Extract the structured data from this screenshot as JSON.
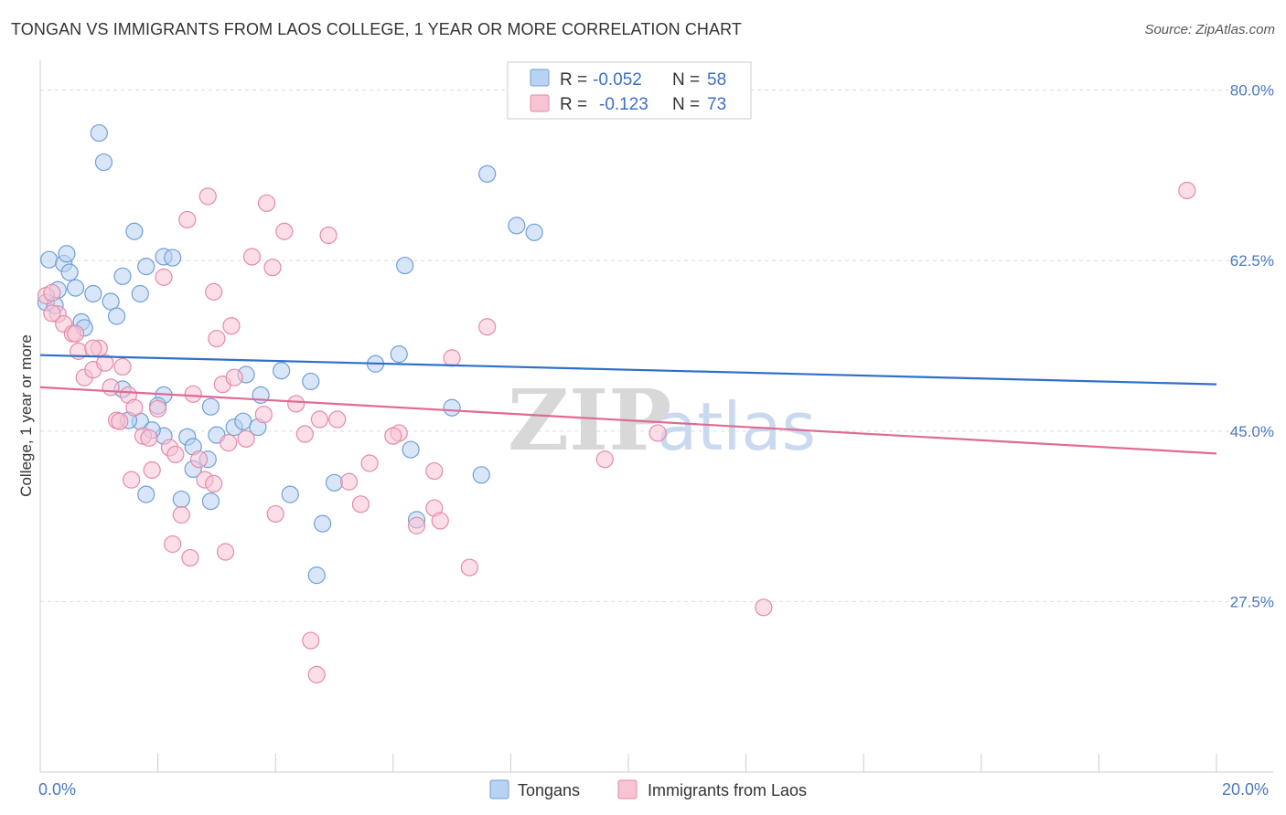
{
  "title": "TONGAN VS IMMIGRANTS FROM LAOS COLLEGE, 1 YEAR OR MORE CORRELATION CHART",
  "source": "Source: ZipAtlas.com",
  "watermark": {
    "zip": "ZIP",
    "atlas": "atlas"
  },
  "legend": {
    "r_label": "R =",
    "n_label": "N =",
    "rows": [
      {
        "r": "-0.052",
        "n": "58",
        "fill": "#b9d2f2",
        "stroke": "#6f9fd8"
      },
      {
        "r": "-0.123",
        "n": "73",
        "fill": "#f8c3d3",
        "stroke": "#e58aa8"
      }
    ]
  },
  "bottom_legend": [
    {
      "label": "Tongans",
      "fill": "#b9d2f2",
      "stroke": "#6f9fd8"
    },
    {
      "label": "Immigrants from Laos",
      "fill": "#f8c3d3",
      "stroke": "#e58aa8"
    }
  ],
  "chart_data": {
    "type": "scatter",
    "title": "TONGAN VS IMMIGRANTS FROM LAOS COLLEGE, 1 YEAR OR MORE CORRELATION CHART",
    "xlabel": "",
    "ylabel": "College, 1 year or more",
    "xlim": [
      0,
      20
    ],
    "ylim": [
      10,
      82.5
    ],
    "x_tick_labels": [
      "0.0%",
      "20.0%"
    ],
    "y_ticks": [
      27.5,
      45.0,
      62.5,
      80.0
    ],
    "y_tick_labels": [
      "27.5%",
      "45.0%",
      "62.5%",
      "80.0%"
    ],
    "grid": true,
    "legend_position": "top-center",
    "series": [
      {
        "name": "Tongans",
        "color": "#6f9fd8",
        "line_color": "#2f6fc9",
        "trend": [
          [
            0,
            52.8
          ],
          [
            20,
            49.8
          ]
        ],
        "points": [
          [
            0.1,
            58.2
          ],
          [
            0.15,
            62.6
          ],
          [
            0.25,
            57.9
          ],
          [
            0.3,
            59.5
          ],
          [
            0.4,
            62.2
          ],
          [
            0.5,
            61.3
          ],
          [
            0.45,
            63.2
          ],
          [
            0.6,
            59.7
          ],
          [
            0.7,
            56.2
          ],
          [
            0.75,
            55.6
          ],
          [
            0.9,
            59.1
          ],
          [
            1.0,
            75.6
          ],
          [
            1.08,
            72.6
          ],
          [
            1.2,
            58.3
          ],
          [
            1.3,
            56.8
          ],
          [
            1.4,
            60.9
          ],
          [
            1.6,
            65.5
          ],
          [
            1.7,
            59.1
          ],
          [
            1.8,
            61.9
          ],
          [
            2.1,
            62.9
          ],
          [
            2.25,
            62.8
          ],
          [
            1.4,
            49.3
          ],
          [
            1.7,
            46.0
          ],
          [
            1.5,
            46.1
          ],
          [
            2.1,
            48.7
          ],
          [
            2.0,
            47.6
          ],
          [
            2.1,
            44.5
          ],
          [
            1.9,
            45.1
          ],
          [
            2.5,
            44.4
          ],
          [
            2.6,
            43.4
          ],
          [
            2.6,
            41.1
          ],
          [
            2.85,
            42.1
          ],
          [
            2.9,
            47.5
          ],
          [
            3.0,
            44.6
          ],
          [
            3.3,
            45.4
          ],
          [
            3.45,
            46.0
          ],
          [
            3.5,
            50.8
          ],
          [
            3.7,
            45.4
          ],
          [
            3.75,
            48.7
          ],
          [
            4.1,
            51.2
          ],
          [
            4.25,
            38.5
          ],
          [
            4.6,
            50.1
          ],
          [
            4.8,
            35.5
          ],
          [
            5.0,
            39.7
          ],
          [
            5.7,
            51.9
          ],
          [
            6.1,
            52.9
          ],
          [
            6.3,
            43.1
          ],
          [
            6.4,
            35.9
          ],
          [
            7.0,
            47.4
          ],
          [
            7.6,
            71.4
          ],
          [
            6.2,
            62.0
          ],
          [
            7.5,
            40.5
          ],
          [
            8.1,
            66.1
          ],
          [
            8.4,
            65.4
          ],
          [
            1.8,
            38.5
          ],
          [
            2.4,
            38.0
          ],
          [
            2.9,
            37.8
          ],
          [
            4.7,
            30.2
          ]
        ]
      },
      {
        "name": "Immigrants from Laos",
        "color": "#e58aa8",
        "line_color": "#e06a94",
        "trend": [
          [
            0,
            49.5
          ],
          [
            20,
            42.7
          ]
        ],
        "points": [
          [
            0.1,
            58.9
          ],
          [
            0.2,
            59.2
          ],
          [
            0.3,
            57.0
          ],
          [
            0.4,
            56.0
          ],
          [
            0.55,
            55.0
          ],
          [
            0.65,
            53.2
          ],
          [
            0.75,
            50.5
          ],
          [
            0.9,
            51.3
          ],
          [
            1.0,
            53.5
          ],
          [
            1.1,
            52.0
          ],
          [
            1.2,
            49.5
          ],
          [
            1.3,
            46.1
          ],
          [
            1.4,
            51.6
          ],
          [
            1.5,
            48.7
          ],
          [
            1.6,
            47.4
          ],
          [
            1.75,
            44.5
          ],
          [
            1.85,
            44.3
          ],
          [
            1.9,
            41.0
          ],
          [
            2.0,
            47.3
          ],
          [
            2.1,
            60.8
          ],
          [
            2.2,
            43.3
          ],
          [
            2.3,
            42.6
          ],
          [
            2.4,
            36.4
          ],
          [
            2.5,
            66.7
          ],
          [
            2.6,
            48.8
          ],
          [
            2.7,
            42.1
          ],
          [
            2.8,
            40.0
          ],
          [
            2.85,
            69.1
          ],
          [
            2.95,
            59.3
          ],
          [
            3.0,
            54.5
          ],
          [
            3.1,
            49.8
          ],
          [
            3.25,
            55.8
          ],
          [
            3.3,
            50.5
          ],
          [
            3.5,
            44.2
          ],
          [
            3.6,
            62.9
          ],
          [
            3.8,
            46.7
          ],
          [
            3.85,
            68.4
          ],
          [
            3.95,
            61.8
          ],
          [
            4.15,
            65.5
          ],
          [
            4.35,
            47.8
          ],
          [
            4.5,
            44.7
          ],
          [
            4.75,
            46.2
          ],
          [
            4.9,
            65.1
          ],
          [
            5.05,
            46.2
          ],
          [
            5.25,
            39.8
          ],
          [
            5.45,
            37.5
          ],
          [
            5.6,
            41.7
          ],
          [
            6.1,
            44.8
          ],
          [
            6.4,
            35.3
          ],
          [
            6.7,
            37.1
          ],
          [
            6.8,
            35.8
          ],
          [
            6.7,
            40.9
          ],
          [
            7.0,
            52.5
          ],
          [
            7.6,
            55.7
          ],
          [
            9.6,
            42.1
          ],
          [
            10.5,
            44.8
          ],
          [
            12.3,
            26.9
          ],
          [
            19.5,
            69.7
          ],
          [
            0.9,
            53.5
          ],
          [
            1.55,
            40.0
          ],
          [
            2.25,
            33.4
          ],
          [
            2.55,
            32.0
          ],
          [
            3.15,
            32.6
          ],
          [
            4.6,
            23.5
          ],
          [
            4.7,
            20.0
          ],
          [
            3.2,
            43.8
          ],
          [
            0.2,
            57.1
          ],
          [
            0.6,
            55.0
          ],
          [
            1.35,
            46.0
          ],
          [
            2.95,
            39.6
          ],
          [
            4.0,
            36.5
          ],
          [
            6.0,
            44.5
          ],
          [
            7.3,
            31.0
          ]
        ]
      }
    ]
  }
}
